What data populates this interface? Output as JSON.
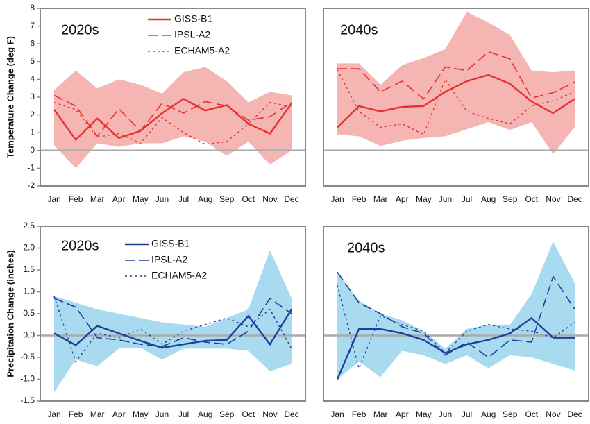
{
  "chart_data": [
    {
      "type": "line",
      "title": "2020s",
      "ylabel": "Temperature Change (deg F)",
      "categories": [
        "Jan",
        "Feb",
        "Mar",
        "Apr",
        "May",
        "Jun",
        "Jul",
        "Aug",
        "Sep",
        "Oct",
        "Nov",
        "Dec"
      ],
      "ylim": [
        -2,
        8
      ],
      "yticks": [
        -2,
        -1,
        0,
        1,
        2,
        3,
        4,
        5,
        6,
        7,
        8
      ],
      "zero_line": true,
      "band": {
        "color": "#f4b5b3",
        "upper": [
          3.4,
          4.5,
          3.5,
          4.0,
          3.7,
          3.2,
          4.4,
          4.7,
          3.9,
          2.7,
          3.3,
          3.1
        ],
        "lower": [
          0.3,
          -1.0,
          0.4,
          0.2,
          0.4,
          0.4,
          0.8,
          0.5,
          -0.3,
          0.5,
          -0.8,
          0.0
        ]
      },
      "series": [
        {
          "name": "GISS-B1",
          "color": "#e8312f",
          "dash": "solid",
          "values": [
            2.3,
            0.6,
            1.8,
            0.7,
            1.1,
            2.1,
            2.9,
            2.25,
            2.55,
            1.5,
            0.95,
            2.65
          ]
        },
        {
          "name": "IPSL-A2",
          "color": "#e8312f",
          "dash": "dashed",
          "values": [
            3.1,
            2.5,
            0.8,
            2.35,
            1.1,
            2.65,
            2.1,
            2.75,
            2.5,
            1.7,
            1.9,
            2.7
          ]
        },
        {
          "name": "ECHAM5-A2",
          "color": "#e8312f",
          "dash": "dotted",
          "values": [
            2.7,
            2.3,
            0.75,
            0.95,
            0.4,
            1.85,
            1.0,
            0.35,
            0.5,
            1.5,
            2.7,
            2.45
          ]
        }
      ]
    },
    {
      "type": "line",
      "title": "2040s",
      "categories": [
        "Jan",
        "Feb",
        "Mar",
        "Apr",
        "May",
        "Jun",
        "Jul",
        "Aug",
        "Sep",
        "Oct",
        "Nov",
        "Dec"
      ],
      "ylim": [
        -2,
        8
      ],
      "zero_line": true,
      "band": {
        "color": "#f4b5b3",
        "upper": [
          4.9,
          4.9,
          3.7,
          4.8,
          5.2,
          5.7,
          7.8,
          7.2,
          6.5,
          4.5,
          4.4,
          4.5
        ],
        "lower": [
          0.9,
          0.8,
          0.25,
          0.55,
          0.7,
          0.8,
          1.2,
          1.6,
          1.15,
          1.6,
          -0.2,
          1.3
        ]
      },
      "series": [
        {
          "color": "#e8312f",
          "dash": "solid",
          "values": [
            1.3,
            2.5,
            2.2,
            2.45,
            2.5,
            3.3,
            3.9,
            4.25,
            3.75,
            2.75,
            2.1,
            2.9
          ]
        },
        {
          "color": "#e8312f",
          "dash": "dashed",
          "values": [
            4.6,
            4.6,
            3.3,
            3.9,
            2.9,
            4.7,
            4.5,
            5.55,
            5.15,
            2.95,
            3.25,
            3.85
          ]
        },
        {
          "color": "#e8312f",
          "dash": "dotted",
          "values": [
            4.55,
            2.2,
            1.3,
            1.5,
            0.9,
            4.0,
            2.2,
            1.8,
            1.5,
            2.5,
            2.8,
            3.3
          ]
        }
      ]
    },
    {
      "type": "line",
      "title": "2020s",
      "ylabel": "Precipitation Change (inches)",
      "categories": [
        "Jan",
        "Feb",
        "Mar",
        "Apr",
        "May",
        "Jun",
        "Jul",
        "Aug",
        "Sep",
        "Oct",
        "Nov",
        "Dec"
      ],
      "ylim": [
        -1.5,
        2.5
      ],
      "yticks": [
        {
          "value": -1.5,
          "label": "-1.5"
        },
        {
          "value": -1,
          "label": "-1.0"
        },
        {
          "value": -0.5,
          "label": "-0.5"
        },
        {
          "value": 0,
          "label": "0.0"
        },
        {
          "value": 0.5,
          "label": "0.5"
        },
        {
          "value": 1,
          "label": "1.0"
        },
        {
          "value": 1.5,
          "label": "1.5"
        },
        {
          "value": 2,
          "label": "2.0"
        },
        {
          "value": 2.5,
          "label": "2.5"
        }
      ],
      "zero_line": true,
      "band": {
        "color": "#a8dbef",
        "upper": [
          0.9,
          0.75,
          0.6,
          0.5,
          0.4,
          0.3,
          0.25,
          0.2,
          0.4,
          0.6,
          1.95,
          0.85
        ],
        "lower": [
          -1.3,
          -0.55,
          -0.7,
          -0.3,
          -0.28,
          -0.55,
          -0.3,
          -0.3,
          -0.3,
          -0.35,
          -0.82,
          -0.65
        ]
      },
      "series": [
        {
          "name": "GISS-B1",
          "color": "#1f3f99",
          "dash": "solid",
          "values": [
            0.05,
            -0.22,
            0.22,
            0.05,
            -0.12,
            -0.28,
            -0.2,
            -0.12,
            -0.1,
            0.45,
            -0.2,
            0.6
          ]
        },
        {
          "name": "IPSL-A2",
          "color": "#1f3f99",
          "dash": "dashed",
          "values": [
            0.85,
            0.65,
            -0.05,
            -0.1,
            -0.2,
            -0.25,
            -0.05,
            -0.15,
            -0.2,
            0.1,
            0.85,
            0.5
          ]
        },
        {
          "name": "ECHAM5-A2",
          "color": "#1f3f99",
          "dash": "dotted",
          "values": [
            0.9,
            -0.6,
            0.05,
            -0.05,
            0.15,
            -0.2,
            0.1,
            0.25,
            0.4,
            0.2,
            0.6,
            -0.3
          ]
        }
      ]
    },
    {
      "type": "line",
      "title": "2040s",
      "categories": [
        "Jan",
        "Feb",
        "Mar",
        "Apr",
        "May",
        "Jun",
        "Jul",
        "Aug",
        "Sep",
        "Oct",
        "Nov",
        "Dec"
      ],
      "ylim": [
        -1.5,
        2.5
      ],
      "zero_line": true,
      "band": {
        "color": "#a8dbef",
        "upper": [
          1.45,
          0.8,
          0.5,
          0.35,
          0.1,
          -0.3,
          0.15,
          0.25,
          0.25,
          0.95,
          2.15,
          1.2
        ],
        "lower": [
          -1.0,
          -0.6,
          -0.95,
          -0.35,
          -0.45,
          -0.65,
          -0.45,
          -0.75,
          -0.45,
          -0.5,
          -0.65,
          -0.8
        ]
      },
      "series": [
        {
          "color": "#1f3f99",
          "dash": "solid",
          "values": [
            -1.0,
            0.15,
            0.15,
            0.05,
            -0.1,
            -0.4,
            -0.2,
            -0.1,
            0.05,
            0.4,
            -0.05,
            -0.05
          ]
        },
        {
          "color": "#1f3f99",
          "dash": "dashed",
          "values": [
            1.45,
            0.75,
            0.5,
            0.2,
            0.05,
            -0.45,
            -0.15,
            -0.5,
            -0.1,
            -0.15,
            1.35,
            0.6
          ]
        },
        {
          "color": "#1f3f99",
          "dash": "dotted",
          "values": [
            1.15,
            -0.75,
            0.45,
            0.25,
            0.1,
            -0.4,
            0.1,
            0.25,
            0.15,
            0.1,
            -0.05,
            0.3
          ]
        }
      ]
    }
  ]
}
